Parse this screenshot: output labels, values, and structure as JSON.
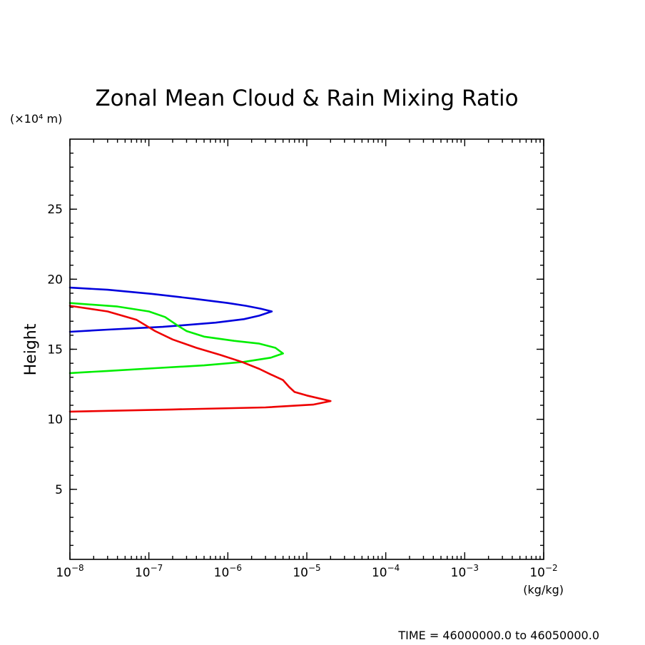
{
  "chart_data": {
    "type": "line",
    "title": "Zonal Mean Cloud & Rain Mixing Ratio",
    "ylabel": "Height",
    "yunit": "(×10⁴ m)",
    "xunit": "(kg/kg)",
    "xscale": "log",
    "xlim": [
      1e-08,
      0.01
    ],
    "ylim": [
      0,
      30
    ],
    "yticks": [
      5,
      10,
      15,
      20,
      25
    ],
    "xticks": [
      {
        "value": 1e-08,
        "base": "10",
        "exp": "−8"
      },
      {
        "value": 1e-07,
        "base": "10",
        "exp": "−7"
      },
      {
        "value": 1e-06,
        "base": "10",
        "exp": "−6"
      },
      {
        "value": 1e-05,
        "base": "10",
        "exp": "−5"
      },
      {
        "value": 0.0001,
        "base": "10",
        "exp": "−4"
      },
      {
        "value": 0.001,
        "base": "10",
        "exp": "−3"
      },
      {
        "value": 0.01,
        "base": "10",
        "exp": "−2"
      }
    ],
    "grid": false,
    "series": [
      {
        "color": "#0000dd",
        "x": [
          1e-08,
          3e-08,
          1.1e-07,
          3.8e-07,
          1e-06,
          1.7e-06,
          2.6e-06,
          3.6e-06,
          2.5e-06,
          1.6e-06,
          7e-07,
          1.5e-07,
          3e-08,
          1e-08
        ],
        "y": [
          19.4,
          19.25,
          18.95,
          18.6,
          18.3,
          18.1,
          17.9,
          17.7,
          17.4,
          17.15,
          16.9,
          16.6,
          16.4,
          16.25
        ]
      },
      {
        "color": "#00ee00",
        "x": [
          1e-08,
          4e-08,
          1e-07,
          1.6e-07,
          2.3e-07,
          3e-07,
          5e-07,
          1.2e-06,
          2.5e-06,
          4e-06,
          5e-06,
          3.5e-06,
          1.6e-06,
          5e-07,
          1.2e-07,
          3e-08,
          1e-08
        ],
        "y": [
          18.3,
          18.05,
          17.7,
          17.3,
          16.7,
          16.3,
          15.9,
          15.6,
          15.4,
          15.1,
          14.7,
          14.4,
          14.1,
          13.85,
          13.65,
          13.45,
          13.3
        ]
      },
      {
        "color": "#ee0000",
        "x": [
          1e-08,
          3e-08,
          7e-08,
          1.2e-07,
          2e-07,
          4e-07,
          8e-07,
          1.5e-06,
          2.5e-06,
          3.5e-06,
          5e-06,
          6e-06,
          7e-06,
          1e-05,
          2e-05,
          1.2e-05,
          3e-06,
          2e-07,
          1e-08
        ],
        "y": [
          18.1,
          17.7,
          17.1,
          16.3,
          15.7,
          15.1,
          14.6,
          14.1,
          13.6,
          13.2,
          12.8,
          12.3,
          11.95,
          11.7,
          11.3,
          11.05,
          10.85,
          10.7,
          10.55
        ]
      }
    ],
    "annotation": "TIME = 46000000.0 to 46050000.0"
  }
}
